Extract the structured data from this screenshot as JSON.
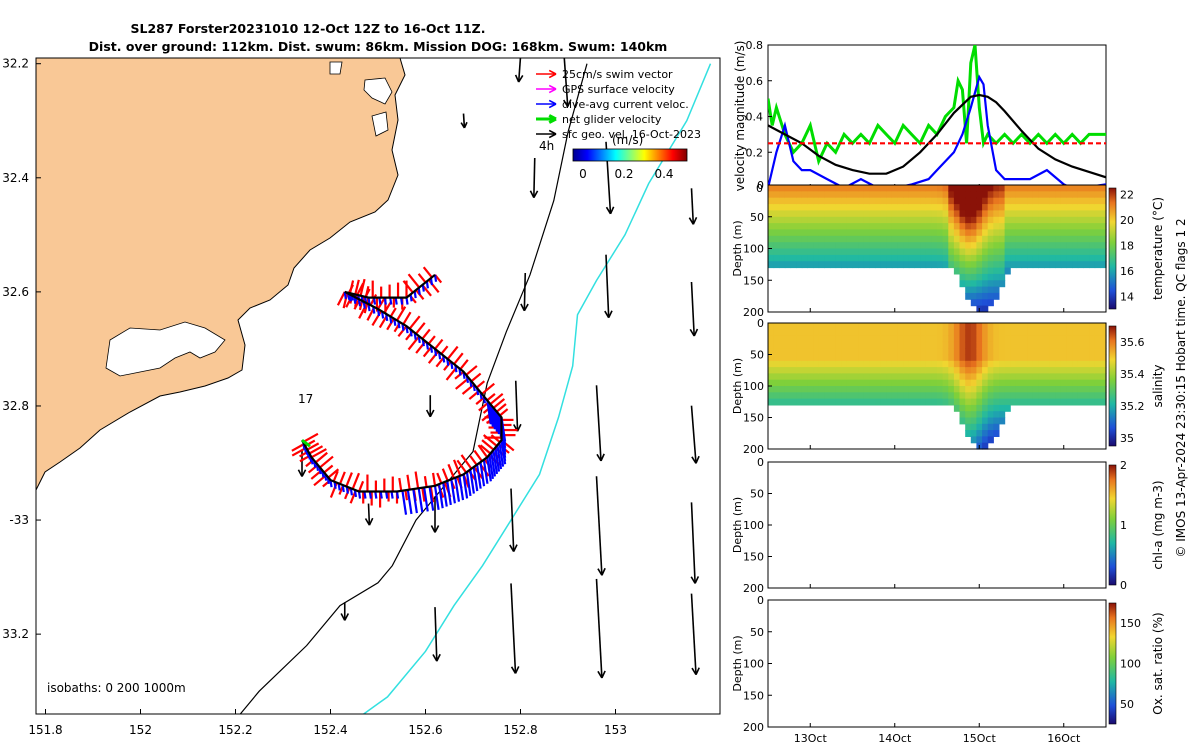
{
  "figure": {
    "title_line1": "SL287 Forster20231010 12-Oct 12Z to 16-Oct 11Z.",
    "title_line2": "Dist. over ground: 112km. Dist. swum: 86km. Mission DOG: 168km. Swum: 140km",
    "side_text": "© IMOS 13-Apr-2024 23:30:15 Hobart time. QC flags 1  2",
    "colors": {
      "land": "#f9c896",
      "ocean": "#ffffff",
      "isobath_200": "#000000",
      "isobath_1000": "#33e0e0",
      "swim": "#ff0000",
      "gps": "#ff00ff",
      "dive_avg": "#0000ff",
      "net": "#00dd00",
      "sfc_geo": "#000000"
    }
  },
  "chart_data": [
    {
      "type": "map",
      "title": "glider track map",
      "xlim": [
        151.78,
        153.22
      ],
      "ylim": [
        33.34,
        32.19
      ],
      "xticks": [
        151.8,
        152,
        152.2,
        152.4,
        152.6,
        152.8,
        153
      ],
      "xtick_labels": [
        "151.8",
        "152",
        "152.2",
        "152.4",
        "152.6",
        "152.8",
        "153"
      ],
      "yticks": [
        32.2,
        32.4,
        32.6,
        32.8,
        33,
        33.2
      ],
      "ytick_labels": [
        "32.2",
        "32.4",
        "32.6",
        "32.8",
        "-33",
        "33.2"
      ],
      "legend": [
        {
          "label": "25cm/s swim vector",
          "color": "#ff0000"
        },
        {
          "label": "GPS surface velocity",
          "color": "#ff00ff"
        },
        {
          "label": "dive-avg current veloc.",
          "color": "#0000ff"
        },
        {
          "label": "net glider velocity",
          "color": "#00dd00"
        },
        {
          "label": "sfc geo. vel. 16-Oct-2023",
          "color": "#000000"
        }
      ],
      "time_marker": "4h",
      "point_label": "17",
      "colorbar": {
        "label": "(m/s)",
        "ticks": [
          "0",
          "0.2",
          "0.4"
        ],
        "range": [
          0,
          0.5
        ]
      },
      "isobath_note": "isobaths: 0   200  1000m",
      "track": [
        [
          152.62,
          32.57
        ],
        [
          152.56,
          32.61
        ],
        [
          152.48,
          32.61
        ],
        [
          152.43,
          32.6
        ],
        [
          152.5,
          32.63
        ],
        [
          152.56,
          32.66
        ],
        [
          152.62,
          32.7
        ],
        [
          152.68,
          32.74
        ],
        [
          152.73,
          32.79
        ],
        [
          152.76,
          32.82
        ],
        [
          152.76,
          32.86
        ],
        [
          152.73,
          32.89
        ],
        [
          152.68,
          32.92
        ],
        [
          152.62,
          32.94
        ],
        [
          152.54,
          32.95
        ],
        [
          152.46,
          32.95
        ],
        [
          152.4,
          32.93
        ],
        [
          152.36,
          32.89
        ],
        [
          152.34,
          32.86
        ]
      ],
      "isobath_200": [
        [
          152.94,
          32.2
        ],
        [
          152.9,
          32.32
        ],
        [
          152.87,
          32.44
        ],
        [
          152.82,
          32.57
        ],
        [
          152.77,
          32.67
        ],
        [
          152.73,
          32.76
        ],
        [
          152.7,
          32.88
        ],
        [
          152.64,
          32.94
        ],
        [
          152.58,
          33.0
        ],
        [
          152.53,
          33.08
        ],
        [
          152.5,
          33.11
        ],
        [
          152.42,
          33.15
        ],
        [
          152.35,
          33.22
        ],
        [
          152.25,
          33.3
        ],
        [
          152.21,
          33.34
        ]
      ],
      "isobath_1000": [
        [
          153.2,
          32.2
        ],
        [
          153.15,
          32.3
        ],
        [
          153.07,
          32.41
        ],
        [
          153.02,
          32.5
        ],
        [
          152.96,
          32.58
        ],
        [
          152.92,
          32.64
        ],
        [
          152.91,
          32.73
        ],
        [
          152.88,
          32.82
        ],
        [
          152.84,
          32.92
        ],
        [
          152.78,
          33.0
        ],
        [
          152.72,
          33.08
        ],
        [
          152.66,
          33.15
        ],
        [
          152.6,
          33.23
        ],
        [
          152.52,
          33.31
        ],
        [
          152.47,
          33.34
        ]
      ],
      "geo_arrows": [
        {
          "lon": 152.8,
          "lat": 32.21,
          "u": -0.02,
          "v": 0.14
        },
        {
          "lon": 152.89,
          "lat": 32.22,
          "u": 0.05,
          "v": 0.35
        },
        {
          "lon": 152.83,
          "lat": 32.4,
          "u": -0.01,
          "v": 0.22
        },
        {
          "lon": 152.98,
          "lat": 32.4,
          "u": 0.05,
          "v": 0.4
        },
        {
          "lon": 153.16,
          "lat": 32.45,
          "u": 0.02,
          "v": 0.2
        },
        {
          "lon": 152.81,
          "lat": 32.6,
          "u": -0.01,
          "v": 0.21
        },
        {
          "lon": 152.98,
          "lat": 32.59,
          "u": 0.03,
          "v": 0.35
        },
        {
          "lon": 153.16,
          "lat": 32.63,
          "u": 0.03,
          "v": 0.3
        },
        {
          "lon": 152.61,
          "lat": 32.8,
          "u": 0.0,
          "v": 0.12
        },
        {
          "lon": 152.79,
          "lat": 32.8,
          "u": 0.02,
          "v": 0.28
        },
        {
          "lon": 152.96,
          "lat": 32.83,
          "u": 0.05,
          "v": 0.42
        },
        {
          "lon": 153.16,
          "lat": 32.85,
          "u": 0.05,
          "v": 0.32
        },
        {
          "lon": 152.62,
          "lat": 32.99,
          "u": 0.0,
          "v": 0.2
        },
        {
          "lon": 152.78,
          "lat": 33.0,
          "u": 0.03,
          "v": 0.35
        },
        {
          "lon": 152.96,
          "lat": 33.01,
          "u": 0.06,
          "v": 0.55
        },
        {
          "lon": 153.16,
          "lat": 33.04,
          "u": 0.04,
          "v": 0.45
        },
        {
          "lon": 152.62,
          "lat": 33.2,
          "u": 0.02,
          "v": 0.3
        },
        {
          "lon": 152.78,
          "lat": 33.19,
          "u": 0.05,
          "v": 0.5
        },
        {
          "lon": 152.96,
          "lat": 33.19,
          "u": 0.06,
          "v": 0.55
        },
        {
          "lon": 153.16,
          "lat": 33.2,
          "u": 0.05,
          "v": 0.45
        },
        {
          "lon": 152.34,
          "lat": 32.9,
          "u": 0.0,
          "v": 0.15
        },
        {
          "lon": 152.48,
          "lat": 32.99,
          "u": 0.01,
          "v": 0.12
        },
        {
          "lon": 152.43,
          "lat": 33.16,
          "u": 0.0,
          "v": 0.1
        },
        {
          "lon": 152.68,
          "lat": 32.3,
          "u": 0.01,
          "v": 0.08
        }
      ]
    },
    {
      "type": "line",
      "title": "velocity time series",
      "ylabel": "velocity magnitude (m/s)",
      "ylim": [
        0,
        0.8
      ],
      "yticks": [
        "0",
        "0.2",
        "0.4",
        "0.6",
        "0.8"
      ],
      "xlim_days": [
        12.5,
        16.5
      ],
      "series": [
        {
          "name": "net glider velocity",
          "color": "#00dd00",
          "x": [
            12.5,
            12.55,
            12.6,
            12.7,
            12.8,
            12.9,
            13.0,
            13.1,
            13.2,
            13.3,
            13.4,
            13.5,
            13.6,
            13.7,
            13.8,
            13.9,
            14.0,
            14.1,
            14.2,
            14.3,
            14.4,
            14.5,
            14.6,
            14.7,
            14.75,
            14.8,
            14.85,
            14.9,
            14.95,
            15.0,
            15.05,
            15.1,
            15.2,
            15.3,
            15.4,
            15.5,
            15.6,
            15.7,
            15.8,
            15.9,
            16.0,
            16.1,
            16.2,
            16.3,
            16.4,
            16.5
          ],
          "values": [
            0.5,
            0.35,
            0.45,
            0.3,
            0.2,
            0.25,
            0.35,
            0.15,
            0.25,
            0.2,
            0.3,
            0.25,
            0.3,
            0.25,
            0.35,
            0.3,
            0.25,
            0.35,
            0.3,
            0.25,
            0.35,
            0.3,
            0.4,
            0.45,
            0.6,
            0.55,
            0.25,
            0.7,
            0.8,
            0.45,
            0.25,
            0.3,
            0.25,
            0.3,
            0.25,
            0.3,
            0.25,
            0.3,
            0.25,
            0.3,
            0.25,
            0.3,
            0.25,
            0.3,
            0.3,
            0.3
          ]
        },
        {
          "name": "dive-avg current veloc.",
          "color": "#0000ff",
          "x": [
            12.5,
            12.6,
            12.7,
            12.8,
            12.9,
            13.0,
            13.2,
            13.4,
            13.6,
            13.8,
            14.0,
            14.2,
            14.4,
            14.5,
            14.6,
            14.7,
            14.8,
            14.9,
            15.0,
            15.05,
            15.1,
            15.2,
            15.3,
            15.4,
            15.6,
            15.8,
            16.0,
            16.1,
            16.2,
            16.5
          ],
          "values": [
            0.0,
            0.2,
            0.35,
            0.15,
            0.1,
            0.1,
            0.05,
            0.0,
            0.05,
            0.0,
            0.0,
            0.02,
            0.05,
            0.1,
            0.15,
            0.2,
            0.3,
            0.45,
            0.62,
            0.58,
            0.35,
            0.1,
            0.05,
            0.05,
            0.05,
            0.1,
            0.02,
            0.0,
            0.0,
            0.02
          ]
        },
        {
          "name": "smoothed current",
          "color": "#000000",
          "x": [
            12.5,
            12.7,
            12.9,
            13.1,
            13.3,
            13.5,
            13.7,
            13.9,
            14.1,
            14.3,
            14.5,
            14.7,
            14.9,
            15.0,
            15.1,
            15.2,
            15.3,
            15.5,
            15.7,
            15.9,
            16.1,
            16.3,
            16.5
          ],
          "values": [
            0.35,
            0.3,
            0.25,
            0.18,
            0.13,
            0.1,
            0.08,
            0.08,
            0.12,
            0.2,
            0.3,
            0.42,
            0.51,
            0.52,
            0.51,
            0.48,
            0.43,
            0.32,
            0.22,
            0.16,
            0.12,
            0.09,
            0.06
          ]
        },
        {
          "name": "swim speed",
          "color": "#ff0000",
          "x": [
            12.5,
            16.5
          ],
          "values": [
            0.25,
            0.25
          ]
        }
      ]
    },
    {
      "type": "heatmap",
      "title": "temperature section",
      "ylabel": "Depth (m)",
      "yticks": [
        "0",
        "50",
        "100",
        "150",
        "200"
      ],
      "colorbar_label": "temperature (°C)",
      "colorbar_ticks": [
        "22",
        "20",
        "18",
        "16",
        "14"
      ],
      "range": [
        13,
        22.5
      ]
    },
    {
      "type": "heatmap",
      "title": "salinity section",
      "ylabel": "Depth (m)",
      "yticks": [
        "0",
        "50",
        "100",
        "150",
        "200"
      ],
      "colorbar_label": "salinity",
      "colorbar_ticks": [
        "35.6",
        "35.4",
        "35.2",
        "35"
      ],
      "range": [
        34.95,
        35.7
      ]
    },
    {
      "type": "heatmap",
      "title": "chl-a section (empty)",
      "ylabel": "Depth (m)",
      "yticks": [
        "0",
        "50",
        "100",
        "150",
        "200"
      ],
      "colorbar_label": "chl-a (mg m-3)",
      "colorbar_ticks": [
        "2",
        "1",
        "0"
      ],
      "range": [
        0,
        2
      ]
    },
    {
      "type": "heatmap",
      "title": "oxygen section (empty)",
      "ylabel": "Depth (m)",
      "yticks": [
        "0",
        "50",
        "100",
        "150",
        "200"
      ],
      "colorbar_label": "Ox. sat. ratio (%)",
      "colorbar_ticks": [
        "150",
        "100",
        "50"
      ],
      "range": [
        25,
        175
      ],
      "xtick_labels": [
        "13Oct",
        "14Oct",
        "15Oct",
        "16Oct"
      ],
      "xtick_days": [
        13,
        14,
        15,
        16
      ]
    }
  ]
}
